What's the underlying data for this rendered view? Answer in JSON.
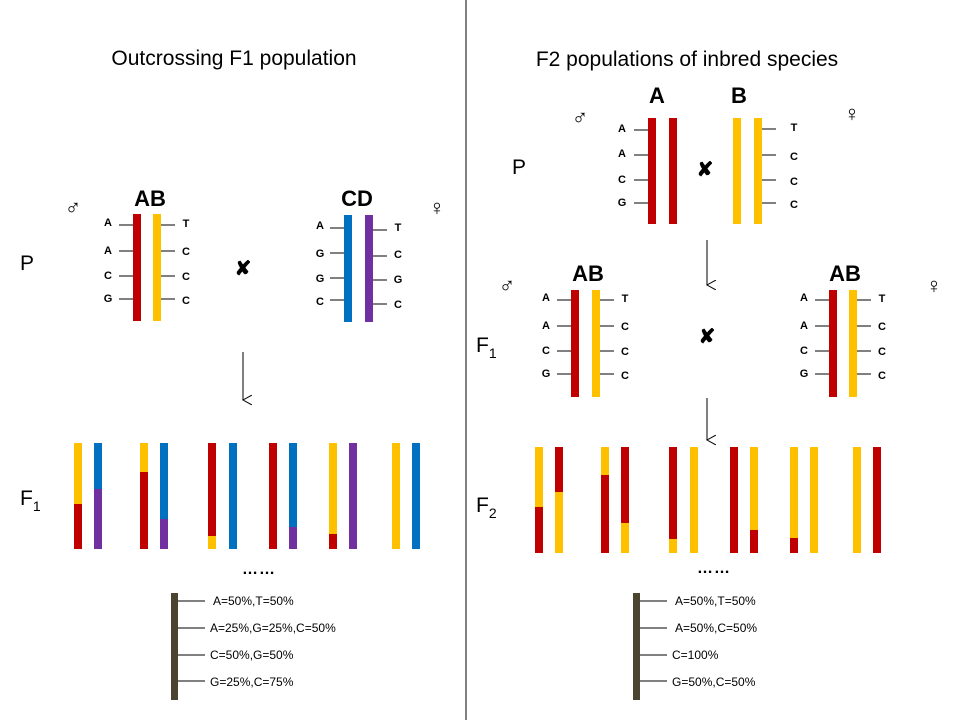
{
  "colors": {
    "red": "#c00000",
    "yellow": "#ffc000",
    "blue": "#0070c0",
    "purple": "#7030a0",
    "olive": "#4a4431",
    "line": "#000000"
  },
  "left": {
    "title": "Outcrossing F1 population",
    "p_label": "P",
    "f1_label": "F",
    "f1_sub": "1",
    "male_symbol": "♂",
    "female_symbol": "♀",
    "cross_symbol": "✘",
    "parent1": {
      "name": "AB",
      "left_bases": [
        "A",
        "A",
        "C",
        "G"
      ],
      "right_bases": [
        "T",
        "C",
        "C",
        "C"
      ]
    },
    "parent2": {
      "name": "CD",
      "left_bases": [
        "A",
        "G",
        "G",
        "C"
      ],
      "right_bases": [
        "T",
        "C",
        "G",
        "C"
      ]
    },
    "ellipsis": "……",
    "frequencies": [
      "A=50%,T=50%",
      "A=25%,G=25%,C=50%",
      "C=50%,G=50%",
      "G=25%,C=75%"
    ]
  },
  "right": {
    "title": "F2 populations of inbred species",
    "p_label": "P",
    "f1_label": "F",
    "f1_sub": "1",
    "f2_label": "F",
    "f2_sub": "2",
    "male_symbol": "♂",
    "female_symbol": "♀",
    "cross_symbol": "✘",
    "parentA": {
      "name": "A",
      "bases": [
        "A",
        "A",
        "C",
        "G"
      ]
    },
    "parentB": {
      "name": "B",
      "bases": [
        "T",
        "C",
        "C",
        "C"
      ]
    },
    "f1_male": {
      "name": "AB",
      "left_bases": [
        "A",
        "A",
        "C",
        "G"
      ],
      "right_bases": [
        "T",
        "C",
        "C",
        "C"
      ]
    },
    "f1_female": {
      "name": "AB",
      "left_bases": [
        "A",
        "A",
        "C",
        "G"
      ],
      "right_bases": [
        "T",
        "C",
        "C",
        "C"
      ]
    },
    "ellipsis": "……",
    "frequencies": [
      "A=50%,T=50%",
      "A=50%,C=50%",
      "C=100%",
      "G=50%,C=50%"
    ]
  }
}
